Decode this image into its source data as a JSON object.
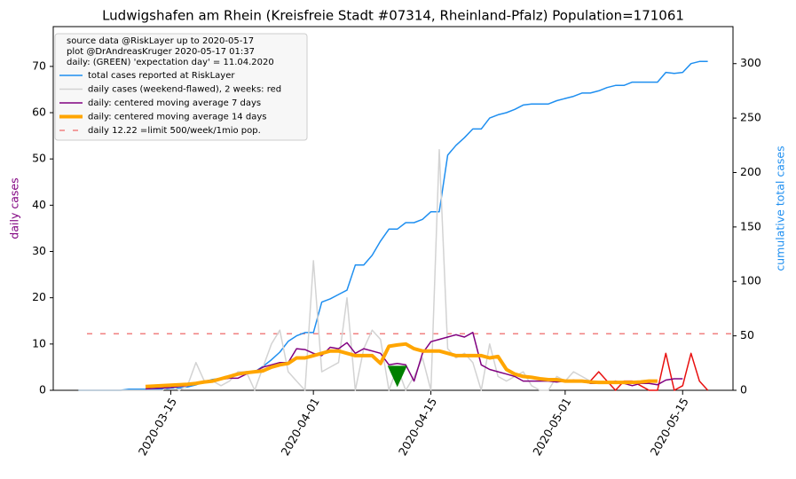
{
  "chart_data": {
    "type": "line",
    "title": "Ludwigshafen am Rhein (Kreisfreie Stadt #07314, Rheinland-Pfalz) Population=171061",
    "ylabel": "daily cases",
    "y2label": "cumulative total cases",
    "legend_header": [
      "source data @RiskLayer up to 2020-05-17",
      "plot @DrAndreasKruger 2020-05-17 01:37",
      "daily: (GREEN) 'expectation day' = 11.04.2020"
    ],
    "legend": "upper left",
    "x": [
      "2020-03-04",
      "2020-03-05",
      "2020-03-06",
      "2020-03-07",
      "2020-03-08",
      "2020-03-09",
      "2020-03-10",
      "2020-03-11",
      "2020-03-12",
      "2020-03-13",
      "2020-03-14",
      "2020-03-15",
      "2020-03-16",
      "2020-03-17",
      "2020-03-18",
      "2020-03-19",
      "2020-03-20",
      "2020-03-21",
      "2020-03-22",
      "2020-03-23",
      "2020-03-24",
      "2020-03-25",
      "2020-03-26",
      "2020-03-27",
      "2020-03-28",
      "2020-03-29",
      "2020-03-30",
      "2020-03-31",
      "2020-04-01",
      "2020-04-02",
      "2020-04-03",
      "2020-04-04",
      "2020-04-05",
      "2020-04-06",
      "2020-04-07",
      "2020-04-08",
      "2020-04-09",
      "2020-04-10",
      "2020-04-11",
      "2020-04-12",
      "2020-04-13",
      "2020-04-14",
      "2020-04-15",
      "2020-04-16",
      "2020-04-17",
      "2020-04-18",
      "2020-04-19",
      "2020-04-20",
      "2020-04-21",
      "2020-04-22",
      "2020-04-23",
      "2020-04-24",
      "2020-04-25",
      "2020-04-26",
      "2020-04-27",
      "2020-04-28",
      "2020-04-29",
      "2020-04-30",
      "2020-05-01",
      "2020-05-02",
      "2020-05-03",
      "2020-05-04",
      "2020-05-05",
      "2020-05-06",
      "2020-05-07",
      "2020-05-08",
      "2020-05-09",
      "2020-05-10",
      "2020-05-11",
      "2020-05-12",
      "2020-05-13",
      "2020-05-14",
      "2020-05-15",
      "2020-05-16",
      "2020-05-17",
      "2020-05-18"
    ],
    "xlim": [
      "2020-03-01",
      "2020-05-21"
    ],
    "xticks": [
      "2020-03-15",
      "2020-04-01",
      "2020-04-15",
      "2020-05-01",
      "2020-05-15"
    ],
    "ylim": [
      0,
      78.6
    ],
    "yticks": [
      0,
      10,
      20,
      30,
      40,
      50,
      60,
      70
    ],
    "y2lim": [
      0,
      334
    ],
    "y2ticks": [
      0,
      50,
      100,
      150,
      200,
      250,
      300
    ],
    "series": [
      {
        "name": "total cases reported at RiskLayer",
        "color": "#1f8ff0",
        "width": 1.5,
        "axis": "y2",
        "values": [
          0,
          0,
          0,
          0,
          0,
          0,
          1,
          1,
          1,
          1,
          1,
          2,
          2,
          3,
          5,
          8,
          10,
          11,
          13,
          15,
          17,
          17,
          22,
          28,
          35,
          45,
          50,
          53,
          53,
          81,
          84,
          88,
          92,
          115,
          115,
          124,
          137,
          148,
          148,
          154,
          154,
          157,
          164,
          164,
          216,
          225,
          232,
          240,
          240,
          250,
          253,
          255,
          258,
          262,
          263,
          263,
          263,
          266,
          268,
          270,
          273,
          273,
          275,
          278,
          280,
          280,
          283,
          283,
          283,
          283,
          292,
          291,
          292,
          300,
          302,
          302
        ]
      },
      {
        "name": "daily cases (weekend-flawed), 2 weeks: red",
        "color": "#d3d3d3",
        "width": 1.5,
        "values": [
          0,
          0,
          0,
          0,
          0,
          0,
          0,
          0,
          0,
          0,
          0,
          1,
          0,
          1,
          6,
          2,
          2,
          1,
          2,
          4,
          4,
          0,
          5,
          10,
          13,
          4,
          2,
          0,
          28,
          4,
          5,
          6,
          20,
          0,
          9,
          13,
          11,
          0,
          5,
          0,
          3,
          7,
          0,
          52,
          9,
          7,
          8,
          6,
          0,
          10,
          3,
          2,
          3,
          4,
          1,
          0,
          0,
          3,
          2,
          4,
          3,
          2,
          null,
          null,
          null,
          null,
          null,
          null,
          null,
          null,
          null,
          null,
          null,
          null,
          null,
          null
        ]
      },
      {
        "color": "#e8100f",
        "width": 1.5,
        "values": [
          null,
          null,
          null,
          null,
          null,
          null,
          null,
          null,
          null,
          null,
          null,
          null,
          null,
          null,
          null,
          null,
          null,
          null,
          null,
          null,
          null,
          null,
          null,
          null,
          null,
          null,
          null,
          null,
          null,
          null,
          null,
          null,
          null,
          null,
          null,
          null,
          null,
          null,
          null,
          null,
          null,
          null,
          null,
          null,
          null,
          null,
          null,
          null,
          null,
          null,
          null,
          null,
          null,
          null,
          null,
          null,
          null,
          null,
          null,
          null,
          null,
          2,
          4,
          2,
          0,
          2,
          2,
          1,
          0,
          0,
          8,
          0,
          1,
          8,
          2,
          0
        ]
      },
      {
        "name": "daily: centered moving average 7 days",
        "color": "#800080",
        "width": 1.5,
        "values": [
          null,
          null,
          null,
          null,
          null,
          null,
          null,
          null,
          0.3,
          0.4,
          0.5,
          0.6,
          0.8,
          1,
          1.3,
          2,
          2.2,
          2.4,
          2.6,
          2.6,
          3.5,
          4,
          5,
          5.5,
          6,
          6,
          9,
          8.8,
          8,
          7.5,
          9.3,
          9,
          10.3,
          8,
          9,
          8.5,
          8,
          5.5,
          5.8,
          5.5,
          2,
          8,
          10.5,
          11,
          11.5,
          12,
          11.5,
          12.5,
          5.5,
          4.5,
          4,
          3.5,
          3,
          2,
          2,
          2,
          2,
          1.8,
          2,
          2.2,
          2,
          1.5,
          1.5,
          1.5,
          2,
          1.5,
          1,
          1.5,
          1.5,
          1.2,
          2.2,
          2.5,
          2.5,
          null,
          null,
          null
        ]
      },
      {
        "name": "daily: centered moving average 14 days",
        "color": "#ffa500",
        "width": 4,
        "values": [
          null,
          null,
          null,
          null,
          null,
          null,
          null,
          null,
          0.8,
          0.9,
          1,
          1.1,
          1.2,
          1.3,
          1.5,
          1.8,
          2,
          2.5,
          3,
          3.5,
          3.8,
          4,
          4.2,
          5,
          5.5,
          5.8,
          7,
          7,
          7.5,
          8,
          8.5,
          8.5,
          8,
          7.5,
          7.5,
          7.5,
          5.8,
          9.5,
          9.8,
          10,
          9,
          8.5,
          8.5,
          8.5,
          8,
          7.5,
          7.5,
          7.5,
          7.5,
          7,
          7.3,
          4.5,
          3.5,
          3,
          2.8,
          2.5,
          2.3,
          2.3,
          2,
          2,
          2,
          1.8,
          1.7,
          1.7,
          1.7,
          1.7,
          1.7,
          1.8,
          2,
          2,
          null,
          null,
          null,
          null,
          null,
          null
        ]
      }
    ],
    "hline": {
      "value": 12.22,
      "name": "daily 12.22 =limit 500/week/1mio pop.",
      "color": "#f08080"
    },
    "marker": {
      "x": "2020-04-11",
      "y": 3,
      "color": "#008000"
    }
  }
}
